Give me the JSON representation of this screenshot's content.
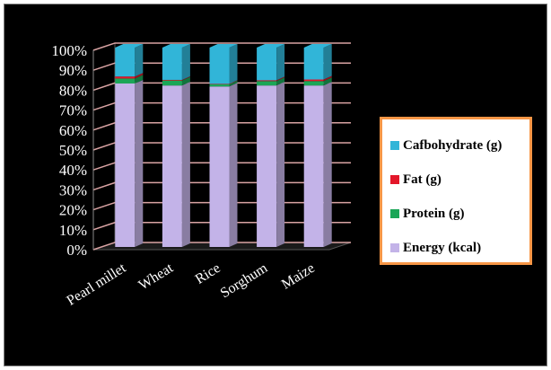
{
  "chart_data": {
    "type": "bar",
    "stacked": true,
    "normalized": true,
    "categories": [
      "Pearl millet",
      "Wheat",
      "Rice",
      "Sorghum",
      "Maize"
    ],
    "series": [
      {
        "name": "Energy  (kcal)",
        "color": "#c3b3e8",
        "values": [
          82,
          81,
          80.5,
          81,
          81
        ]
      },
      {
        "name": "Protein (g)",
        "color": "#1aa657",
        "values": [
          2.5,
          2.5,
          1.2,
          2.2,
          2.2
        ]
      },
      {
        "name": "Fat (g)",
        "color": "#e3172a",
        "values": [
          1,
          0.3,
          0.1,
          0.4,
          0.8
        ]
      },
      {
        "name": "Cafbohydrate (g)",
        "color": "#31b5d8",
        "values": [
          14.5,
          16.2,
          18.2,
          16.4,
          16
        ]
      }
    ],
    "yticks": [
      "0%",
      "10%",
      "20%",
      "30%",
      "40%",
      "50%",
      "60%",
      "70%",
      "80%",
      "90%",
      "100%"
    ],
    "ylim": [
      0,
      100
    ],
    "grid": true,
    "legend_position": "right"
  }
}
